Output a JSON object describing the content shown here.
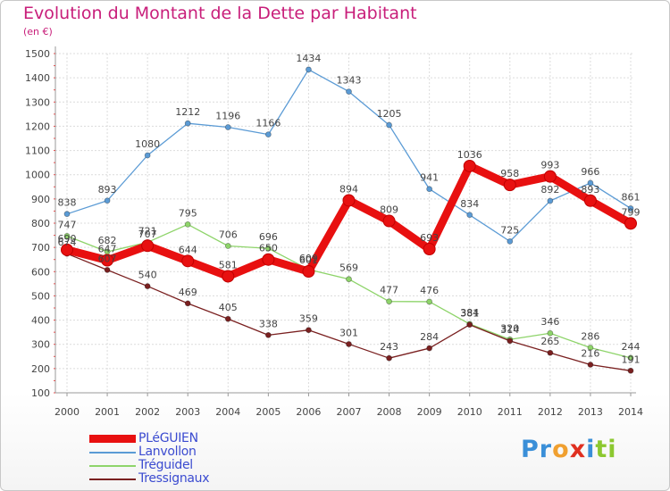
{
  "title": "Evolution du Montant de la Dette par Habitant",
  "subtitle": "(en €)",
  "logo": {
    "text": "Proxiti",
    "letters": [
      {
        "ch": "P",
        "color": "#3a8fd8"
      },
      {
        "ch": "r",
        "color": "#3a8fd8"
      },
      {
        "ch": "o",
        "color": "#f0a030"
      },
      {
        "ch": "x",
        "color": "#e03020"
      },
      {
        "ch": "i",
        "color": "#3a8fd8"
      },
      {
        "ch": "t",
        "color": "#8cc830"
      },
      {
        "ch": "i",
        "color": "#8cc830"
      }
    ]
  },
  "chart_data": {
    "type": "line",
    "title": "Evolution du Montant de la Dette par Habitant",
    "subtitle": "(en €)",
    "categories": [
      "2000",
      "2001",
      "2002",
      "2003",
      "2004",
      "2005",
      "2006",
      "2007",
      "2008",
      "2009",
      "2010",
      "2011",
      "2012",
      "2013",
      "2014"
    ],
    "ylim": [
      100,
      1500
    ],
    "yticks": [
      100,
      200,
      300,
      400,
      500,
      600,
      700,
      800,
      900,
      1000,
      1100,
      1200,
      1300,
      1400,
      1500
    ],
    "grid": true,
    "legend_position": "bottom-left",
    "series": [
      {
        "name": "PLéGUIEN",
        "color": "#e81010",
        "width": 9,
        "values": [
          690,
          647,
          707,
          644,
          581,
          650,
          601,
          894,
          809,
          693,
          1036,
          958,
          993,
          893,
          799
        ],
        "labels": [
          "690",
          "647",
          "707",
          "644",
          "581",
          "650",
          "601",
          "894",
          "809",
          "693",
          "1036",
          "958",
          "993",
          "893",
          "799"
        ]
      },
      {
        "name": "Lanvollon",
        "color": "#5b9bd5",
        "width": 1.3,
        "values": [
          838,
          893,
          1080,
          1212,
          1196,
          1166,
          1434,
          1343,
          1205,
          941,
          834,
          725,
          892,
          966,
          861
        ],
        "labels": [
          "838",
          "893",
          "1080",
          "1212",
          "1196",
          "1166",
          "1434",
          "1343",
          "1205",
          "941",
          "834",
          "725",
          "892",
          "966",
          "861"
        ]
      },
      {
        "name": "Tréguidel",
        "color": "#8ed46a",
        "width": 1.3,
        "values": [
          747,
          682,
          721,
          795,
          706,
          696,
          609,
          569,
          477,
          476,
          384,
          320,
          346,
          286,
          244
        ],
        "labels": [
          "747",
          "682",
          "721",
          "795",
          "706",
          "696",
          "609",
          "569",
          "477",
          "476",
          "384",
          "320",
          "346",
          "286",
          "244"
        ]
      },
      {
        "name": "Tressignaux",
        "color": "#7a2020",
        "width": 1.3,
        "values": [
          674,
          607,
          540,
          469,
          405,
          338,
          359,
          301,
          243,
          284,
          381,
          314,
          265,
          216,
          191
        ],
        "labels": [
          "674",
          "607",
          "540",
          "469",
          "405",
          "338",
          "359",
          "301",
          "243",
          "284",
          "381",
          "314",
          "265",
          "216",
          "191"
        ]
      }
    ]
  }
}
